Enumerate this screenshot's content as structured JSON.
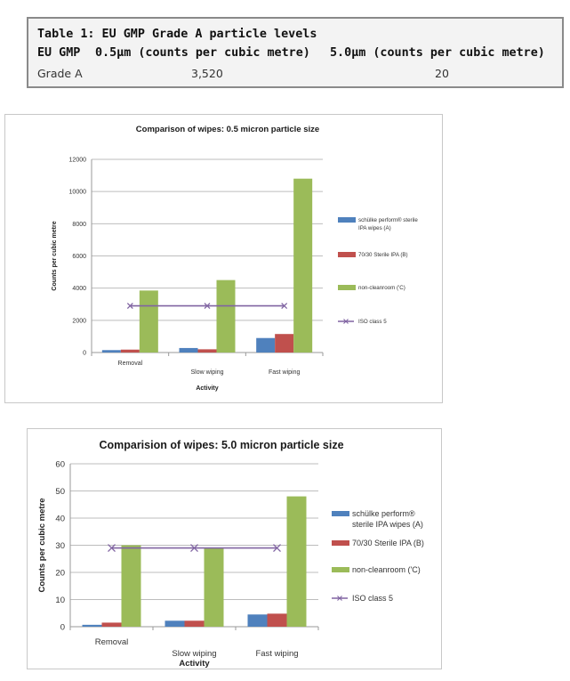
{
  "table": {
    "caption": "Table 1: EU GMP Grade A particle levels",
    "headers": [
      "EU GMP",
      "0.5μm (counts per cubic metre)",
      "5.0μm (counts per cubic metre)"
    ],
    "row": [
      "Grade A",
      "3,520",
      "20"
    ]
  },
  "chart_data": [
    {
      "type": "bar",
      "title": "Comparison of wipes: 0.5 micron particle size",
      "xlabel": "Activity",
      "ylabel": "Counts per cubic metre",
      "categories": [
        "Removal",
        "Slow wiping",
        "Fast wiping"
      ],
      "ylim": [
        0,
        12000
      ],
      "yticks": [
        0,
        2000,
        4000,
        6000,
        8000,
        10000,
        12000
      ],
      "ytick_labels": [
        "0",
        "2000",
        "4000",
        "6000",
        "8000",
        "10000",
        "12000"
      ],
      "series": [
        {
          "name": "schülke perform® sterile IPA wipes (A)",
          "values": [
            150,
            280,
            900
          ],
          "color": "#4f81bd"
        },
        {
          "name": "70/30 Sterile IPA (B)",
          "values": [
            180,
            200,
            1150
          ],
          "color": "#c0504d"
        },
        {
          "name": "non-cleanroom ('C)",
          "values": [
            3850,
            4500,
            10800
          ],
          "color": "#9bbb59"
        }
      ],
      "line": {
        "name": "ISO class 5",
        "values": [
          2900,
          2900,
          2900
        ],
        "color": "#8064a2"
      }
    },
    {
      "type": "bar",
      "title": "Comparision of wipes: 5.0 micron particle size",
      "xlabel": "Activity",
      "ylabel": "Counts per cubic metre",
      "categories": [
        "Removal",
        "Slow wiping",
        "Fast wiping"
      ],
      "ylim": [
        0,
        60
      ],
      "yticks": [
        0,
        10,
        20,
        30,
        40,
        50,
        60
      ],
      "ytick_labels": [
        "0",
        "10",
        "20",
        "30",
        "40",
        "50",
        "60"
      ],
      "series": [
        {
          "name": "schülke perform® sterile IPA wipes (A)",
          "values": [
            0.7,
            2.2,
            4.5
          ],
          "color": "#4f81bd"
        },
        {
          "name": "70/30 Sterile IPA (B)",
          "values": [
            1.5,
            2.2,
            4.8
          ],
          "color": "#c0504d"
        },
        {
          "name": "non-cleanroom ('C)",
          "values": [
            30,
            29,
            48
          ],
          "color": "#9bbb59"
        }
      ],
      "line": {
        "name": "ISO class 5",
        "values": [
          29,
          29,
          29
        ],
        "color": "#8064a2"
      }
    }
  ]
}
